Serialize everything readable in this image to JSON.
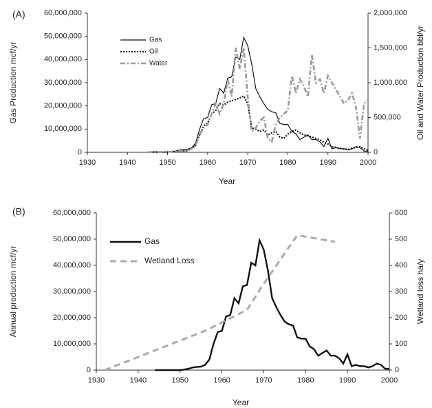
{
  "chart_data": [
    {
      "type": "line",
      "label": "(A)",
      "x_label": "Year",
      "y_label": "Gas Production mcf/yr",
      "y2_label": "Oil and Water Production bbl/yr",
      "x": [
        1945,
        1946,
        1947,
        1948,
        1949,
        1950,
        1951,
        1952,
        1953,
        1954,
        1955,
        1956,
        1957,
        1958,
        1959,
        1960,
        1961,
        1962,
        1963,
        1964,
        1965,
        1966,
        1967,
        1968,
        1969,
        1970,
        1971,
        1972,
        1973,
        1974,
        1975,
        1976,
        1977,
        1978,
        1979,
        1980,
        1981,
        1982,
        1983,
        1984,
        1985,
        1986,
        1987,
        1988,
        1989,
        1990,
        1991,
        1992,
        1993,
        1994,
        1995,
        1996,
        1997,
        1998,
        1999,
        2000
      ],
      "series": [
        {
          "name": "Gas",
          "color": "#111111",
          "dash": "solid",
          "width": 1.2,
          "values": [
            0,
            0,
            0,
            0,
            0,
            0,
            200000,
            500000,
            1000000,
            1200000,
            1300000,
            2000000,
            4000000,
            10000000,
            14500000,
            15000000,
            20500000,
            21000000,
            27500000,
            25500000,
            32000000,
            32500000,
            41000000,
            40000000,
            49500000,
            46000000,
            38000000,
            27500000,
            24000000,
            21000000,
            18500000,
            17500000,
            17000000,
            12500000,
            12000000,
            12000000,
            9000000,
            8000000,
            5500000,
            6500000,
            7500000,
            5500000,
            5500000,
            4500000,
            2500000,
            6000000,
            1500000,
            2000000,
            1500000,
            1500000,
            1000000,
            1500000,
            2500000,
            2000000,
            500000,
            500000
          ]
        },
        {
          "name": "Oil",
          "color": "#111111",
          "dash": "dot",
          "width": 2.2,
          "axis": "y2",
          "values": [
            0,
            5000,
            5000,
            5000,
            5000,
            5000,
            10000,
            15000,
            20000,
            20000,
            20000,
            50000,
            100000,
            250000,
            380000,
            420000,
            550000,
            600000,
            700000,
            680000,
            720000,
            740000,
            760000,
            780000,
            810000,
            700000,
            350000,
            330000,
            300000,
            320000,
            250000,
            280000,
            300000,
            220000,
            200000,
            260000,
            300000,
            320000,
            280000,
            250000,
            240000,
            220000,
            200000,
            180000,
            140000,
            120000,
            80000,
            70000,
            60000,
            50000,
            40000,
            60000,
            70000,
            80000,
            50000,
            30000
          ]
        },
        {
          "name": "Water",
          "color": "#999999",
          "dash": "dashdot",
          "width": 2.6,
          "axis": "y2",
          "values": [
            0,
            5000,
            5000,
            5000,
            5000,
            5000,
            10000,
            15000,
            20000,
            20000,
            20000,
            50000,
            100000,
            250000,
            350000,
            400000,
            550000,
            700000,
            550000,
            700000,
            1050000,
            800000,
            1500000,
            1200000,
            1500000,
            800000,
            300000,
            350000,
            450000,
            500000,
            200000,
            150000,
            400000,
            500000,
            550000,
            600000,
            1100000,
            850000,
            1050000,
            950000,
            800000,
            1400000,
            1000000,
            1050000,
            850000,
            1100000,
            1000000,
            900000,
            800000,
            700000,
            750000,
            850000,
            650000,
            200000,
            700000,
            750000
          ]
        }
      ],
      "xlim": [
        1930,
        2000
      ],
      "xticks": [
        1930,
        1940,
        1950,
        1960,
        1970,
        1980,
        1990,
        2000
      ],
      "ylim": [
        0,
        60000000
      ],
      "yticks": [
        0,
        {
          "value": 10000000,
          "label": "10,000,000"
        },
        {
          "value": 20000000,
          "label": "20,000,000"
        },
        {
          "value": 30000000,
          "label": "30,000,000"
        },
        {
          "value": 40000000,
          "label": "40,000,000"
        },
        {
          "value": 50000000,
          "label": "50,000,000"
        },
        {
          "value": 60000000,
          "label": "60,000,000"
        }
      ],
      "y2lim": [
        0,
        2000000
      ],
      "y2ticks": [
        0,
        {
          "value": 500000,
          "label": "500,000"
        },
        {
          "value": 1000000,
          "label": "1,000,000"
        },
        {
          "value": 1500000,
          "label": "1,500,000"
        },
        {
          "value": 2000000,
          "label": "2,000,000"
        }
      ]
    },
    {
      "type": "line",
      "label": "(B)",
      "x_label": "Year",
      "y_label": "Annual production mcf/yr",
      "y2_label": "Wetland loss ha/y",
      "x": [
        1944,
        1945,
        1946,
        1947,
        1948,
        1949,
        1950,
        1951,
        1952,
        1953,
        1954,
        1955,
        1956,
        1957,
        1958,
        1959,
        1960,
        1961,
        1962,
        1963,
        1964,
        1965,
        1966,
        1967,
        1968,
        1969,
        1970,
        1971,
        1972,
        1973,
        1974,
        1975,
        1976,
        1977,
        1978,
        1979,
        1980,
        1981,
        1982,
        1983,
        1984,
        1985,
        1986,
        1987,
        1988,
        1989,
        1990,
        1991,
        1992,
        1993,
        1994,
        1995,
        1996,
        1997,
        1998,
        1999,
        2000
      ],
      "series": [
        {
          "name": "Gas",
          "color": "#111111",
          "dash": "solid",
          "width": 2.4,
          "values": [
            0,
            0,
            0,
            0,
            0,
            0,
            0,
            200000,
            500000,
            1000000,
            1200000,
            1300000,
            2000000,
            4000000,
            10000000,
            14500000,
            15000000,
            20500000,
            21000000,
            27500000,
            25500000,
            32000000,
            32500000,
            41000000,
            40000000,
            49500000,
            46000000,
            38000000,
            27500000,
            24000000,
            21000000,
            18500000,
            17500000,
            17000000,
            12500000,
            12000000,
            12000000,
            9000000,
            8000000,
            5500000,
            6500000,
            7500000,
            5500000,
            5500000,
            4500000,
            2500000,
            6000000,
            1500000,
            2000000,
            1500000,
            1500000,
            1000000,
            1500000,
            2500000,
            2000000,
            500000,
            500000
          ]
        },
        {
          "name": "Wetland Loss",
          "color": "#aaaaaa",
          "dash": "dash",
          "width": 3,
          "axis": "y2",
          "x": [
            1932,
            1956,
            1966,
            1970,
            1978,
            1987
          ],
          "values": [
            0,
            150,
            230,
            330,
            515,
            490
          ]
        }
      ],
      "xlim": [
        1930,
        2000
      ],
      "xticks": [
        1930,
        1940,
        1950,
        1960,
        1970,
        1980,
        1990,
        2000
      ],
      "ylim": [
        0,
        60000000
      ],
      "yticks": [
        0,
        {
          "value": 10000000,
          "label": "10,000,000"
        },
        {
          "value": 20000000,
          "label": "20,000,000"
        },
        {
          "value": 30000000,
          "label": "30,000,000"
        },
        {
          "value": 40000000,
          "label": "40,000,000"
        },
        {
          "value": 50000000,
          "label": "50,000,000"
        },
        {
          "value": 60000000,
          "label": "60,000,000"
        }
      ],
      "y2lim": [
        0,
        600
      ],
      "y2ticks": [
        0,
        100,
        200,
        300,
        400,
        500,
        600
      ]
    }
  ]
}
